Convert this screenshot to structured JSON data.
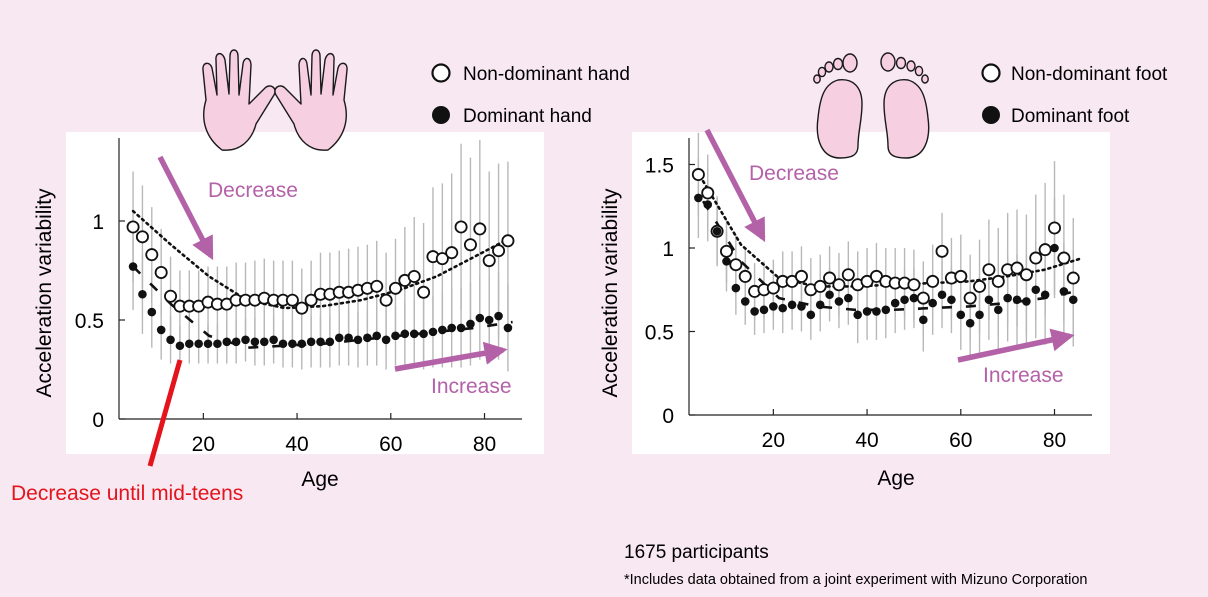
{
  "colors": {
    "background": "#f8e8f2",
    "arrow": "#b462a8",
    "teen_line": "#e3141c",
    "errorbar": "#b8b8b8",
    "limb_fill": "#f6cfe0"
  },
  "icons": {
    "hands": "hands-icon",
    "feet": "feet-icon"
  },
  "annotations": {
    "mid_teens": "Decrease until mid-teens",
    "participants": "1675 participants",
    "footnote": "*Includes data obtained from a joint experiment with Mizuno Corporation"
  },
  "chart_data": [
    {
      "type": "scatter",
      "xlabel": "Age",
      "ylabel": "Acceleration variability",
      "xlim": [
        2,
        88
      ],
      "ylim": [
        0,
        1.42
      ],
      "xticks": [
        20,
        40,
        60,
        80
      ],
      "yticks": [
        0,
        0.5,
        1
      ],
      "ytick_labels": [
        "0",
        "0.5",
        "1"
      ],
      "grid": false,
      "legend": "above-right",
      "annotations": {
        "decrease": "Decrease",
        "increase": "Increase"
      },
      "series": [
        {
          "name": "Non-dominant hand",
          "marker": "open-circle",
          "x": [
            5,
            7,
            9,
            11,
            13,
            15,
            17,
            19,
            21,
            23,
            25,
            27,
            29,
            31,
            33,
            35,
            37,
            39,
            41,
            43,
            45,
            47,
            49,
            51,
            53,
            55,
            57,
            59,
            61,
            63,
            65,
            67,
            69,
            71,
            73,
            75,
            77,
            79,
            81,
            83,
            85
          ],
          "values": [
            0.97,
            0.92,
            0.83,
            0.74,
            0.62,
            0.57,
            0.57,
            0.57,
            0.59,
            0.58,
            0.58,
            0.6,
            0.6,
            0.6,
            0.61,
            0.6,
            0.6,
            0.6,
            0.56,
            0.6,
            0.63,
            0.63,
            0.64,
            0.64,
            0.65,
            0.66,
            0.67,
            0.6,
            0.66,
            0.7,
            0.72,
            0.64,
            0.82,
            0.81,
            0.84,
            0.97,
            0.88,
            0.96,
            0.8,
            0.85,
            0.9
          ],
          "error": [
            0.28,
            0.26,
            0.24,
            0.22,
            0.2,
            0.18,
            0.18,
            0.18,
            0.18,
            0.19,
            0.19,
            0.19,
            0.19,
            0.2,
            0.2,
            0.2,
            0.2,
            0.2,
            0.2,
            0.2,
            0.21,
            0.21,
            0.21,
            0.22,
            0.22,
            0.22,
            0.23,
            0.24,
            0.25,
            0.27,
            0.3,
            0.35,
            0.35,
            0.38,
            0.4,
            0.42,
            0.44,
            0.45,
            0.45,
            0.44,
            0.4
          ],
          "trend": [
            1.05,
            0.88,
            0.72,
            0.6,
            0.56,
            0.57,
            0.6,
            0.65,
            0.72,
            0.82,
            0.92
          ]
        },
        {
          "name": "Dominant hand",
          "marker": "filled-circle",
          "x": [
            5,
            7,
            9,
            11,
            13,
            15,
            17,
            19,
            21,
            23,
            25,
            27,
            29,
            31,
            33,
            35,
            37,
            39,
            41,
            43,
            45,
            47,
            49,
            51,
            53,
            55,
            57,
            59,
            61,
            63,
            65,
            67,
            69,
            71,
            73,
            75,
            77,
            79,
            81,
            83,
            85
          ],
          "values": [
            0.77,
            0.63,
            0.54,
            0.45,
            0.4,
            0.37,
            0.38,
            0.38,
            0.38,
            0.38,
            0.39,
            0.39,
            0.4,
            0.39,
            0.39,
            0.4,
            0.38,
            0.38,
            0.38,
            0.39,
            0.39,
            0.39,
            0.41,
            0.41,
            0.4,
            0.41,
            0.42,
            0.4,
            0.42,
            0.43,
            0.43,
            0.43,
            0.44,
            0.45,
            0.46,
            0.46,
            0.48,
            0.51,
            0.5,
            0.52,
            0.46
          ],
          "error": [
            0.22,
            0.2,
            0.18,
            0.15,
            0.12,
            0.1,
            0.1,
            0.1,
            0.1,
            0.1,
            0.11,
            0.11,
            0.11,
            0.12,
            0.12,
            0.12,
            0.12,
            0.12,
            0.13,
            0.13,
            0.13,
            0.13,
            0.14,
            0.14,
            0.14,
            0.14,
            0.15,
            0.15,
            0.15,
            0.16,
            0.17,
            0.18,
            0.18,
            0.19,
            0.2,
            0.2,
            0.21,
            0.21,
            0.22,
            0.22,
            0.22
          ],
          "trend": [
            0.77,
            0.58,
            0.42,
            0.36,
            0.37,
            0.38,
            0.4,
            0.42,
            0.44,
            0.46,
            0.49
          ]
        }
      ]
    },
    {
      "type": "scatter",
      "xlabel": "Age",
      "ylabel": "Acceleration variability",
      "xlim": [
        2,
        88
      ],
      "ylim": [
        0,
        1.68
      ],
      "xticks": [
        20,
        40,
        60,
        80
      ],
      "yticks": [
        0,
        0.5,
        1,
        1.5
      ],
      "ytick_labels": [
        "0",
        "0.5",
        "1",
        "1.5"
      ],
      "grid": false,
      "legend": "above-right",
      "annotations": {
        "decrease": "Decrease",
        "increase": "Increase"
      },
      "series": [
        {
          "name": "Non-dominant foot",
          "marker": "open-circle",
          "x": [
            4,
            6,
            8,
            10,
            12,
            14,
            16,
            18,
            20,
            22,
            24,
            26,
            28,
            30,
            32,
            34,
            36,
            38,
            40,
            42,
            44,
            46,
            48,
            50,
            52,
            54,
            56,
            58,
            60,
            62,
            64,
            66,
            68,
            70,
            72,
            74,
            76,
            78,
            80,
            82,
            84
          ],
          "values": [
            1.44,
            1.33,
            1.1,
            0.98,
            0.9,
            0.83,
            0.74,
            0.75,
            0.76,
            0.8,
            0.8,
            0.83,
            0.75,
            0.77,
            0.82,
            0.78,
            0.84,
            0.78,
            0.8,
            0.83,
            0.8,
            0.79,
            0.79,
            0.78,
            0.7,
            0.8,
            0.98,
            0.82,
            0.83,
            0.7,
            0.77,
            0.87,
            0.8,
            0.87,
            0.88,
            0.84,
            0.94,
            0.99,
            1.12,
            0.94,
            0.82
          ],
          "error": [
            0.25,
            0.23,
            0.21,
            0.19,
            0.18,
            0.17,
            0.17,
            0.17,
            0.17,
            0.18,
            0.18,
            0.18,
            0.19,
            0.19,
            0.19,
            0.19,
            0.2,
            0.2,
            0.2,
            0.2,
            0.2,
            0.21,
            0.21,
            0.21,
            0.22,
            0.22,
            0.23,
            0.24,
            0.25,
            0.26,
            0.28,
            0.3,
            0.32,
            0.34,
            0.35,
            0.36,
            0.38,
            0.4,
            0.4,
            0.38,
            0.36
          ],
          "trend": [
            1.4,
            1.02,
            0.82,
            0.77,
            0.77,
            0.78,
            0.79,
            0.8,
            0.83,
            0.87,
            0.94
          ]
        },
        {
          "name": "Dominant foot",
          "marker": "filled-circle",
          "x": [
            4,
            6,
            8,
            10,
            12,
            14,
            16,
            18,
            20,
            22,
            24,
            26,
            28,
            30,
            32,
            34,
            36,
            38,
            40,
            42,
            44,
            46,
            48,
            50,
            52,
            54,
            56,
            58,
            60,
            62,
            64,
            66,
            68,
            70,
            72,
            74,
            76,
            78,
            80,
            82,
            84
          ],
          "values": [
            1.3,
            1.26,
            1.1,
            0.92,
            0.76,
            0.68,
            0.62,
            0.63,
            0.65,
            0.64,
            0.66,
            0.65,
            0.6,
            0.66,
            0.72,
            0.68,
            0.7,
            0.6,
            0.62,
            0.62,
            0.63,
            0.67,
            0.69,
            0.7,
            0.57,
            0.67,
            0.72,
            0.69,
            0.6,
            0.55,
            0.6,
            0.69,
            0.63,
            0.7,
            0.69,
            0.68,
            0.75,
            0.72,
            1.0,
            0.74,
            0.69
          ],
          "error": [
            0.24,
            0.22,
            0.2,
            0.18,
            0.16,
            0.14,
            0.14,
            0.14,
            0.14,
            0.15,
            0.15,
            0.15,
            0.15,
            0.16,
            0.16,
            0.16,
            0.16,
            0.17,
            0.17,
            0.17,
            0.17,
            0.18,
            0.18,
            0.18,
            0.19,
            0.19,
            0.2,
            0.2,
            0.21,
            0.22,
            0.23,
            0.24,
            0.25,
            0.26,
            0.27,
            0.28,
            0.29,
            0.3,
            0.3,
            0.29,
            0.28
          ],
          "trend": [
            1.28,
            0.92,
            0.7,
            0.65,
            0.63,
            0.63,
            0.64,
            0.65,
            0.67,
            0.7,
            0.75
          ]
        }
      ]
    }
  ]
}
